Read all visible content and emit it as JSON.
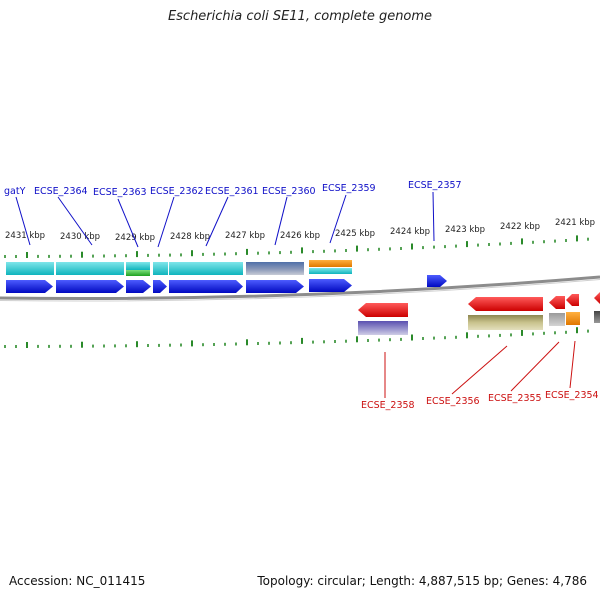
{
  "title": "Escherichia coli SE11, complete genome",
  "footer": {
    "accession": "Accession: NC_011415",
    "topology": "Topology: circular; Length: 4,887,515 bp; Genes: 4,786"
  },
  "colors": {
    "forward_label": "#1010c8",
    "reverse_label": "#cc1111",
    "tick": "#2a8a2a",
    "backbone": "#8c8c8c"
  },
  "kbp_ticks": [
    "2431 kbp",
    "2430 kbp",
    "2429 kbp",
    "2428 kbp",
    "2427 kbp",
    "2426 kbp",
    "2425 kbp",
    "2424 kbp",
    "2423 kbp",
    "2422 kbp",
    "2421 kbp"
  ],
  "forward_labels": [
    "gatY",
    "ECSE_2364",
    "ECSE_2363",
    "ECSE_2362",
    "ECSE_2361",
    "ECSE_2360",
    "ECSE_2359",
    "ECSE_2357"
  ],
  "reverse_labels": [
    "ECSE_2358",
    "ECSE_2356",
    "ECSE_2355",
    "ECSE_2354"
  ]
}
